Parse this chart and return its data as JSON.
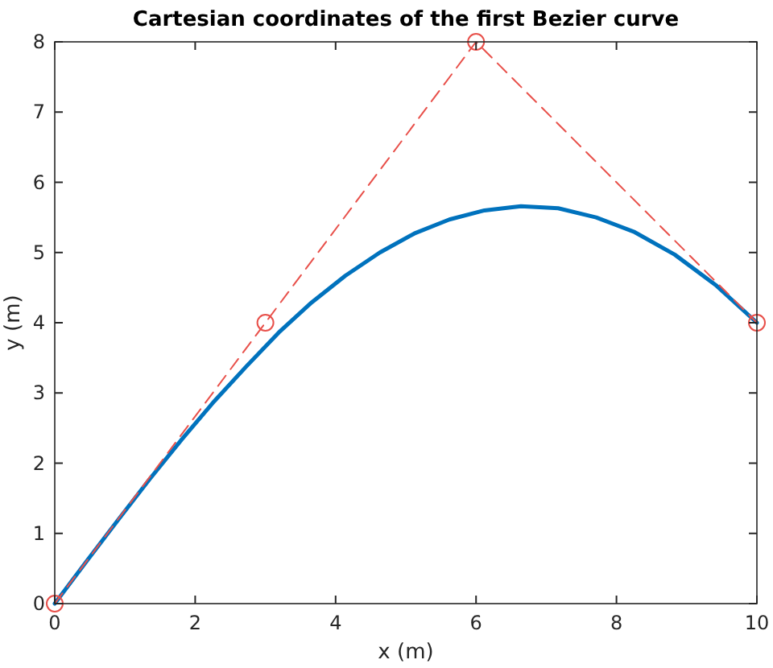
{
  "chart_data": {
    "type": "line",
    "title": "Cartesian coordinates of the first Bezier curve",
    "xlabel": "x (m)",
    "ylabel": "y (m)",
    "xlim": [
      0,
      10
    ],
    "ylim": [
      0,
      8
    ],
    "xticks": [
      0,
      2,
      4,
      6,
      8,
      10
    ],
    "yticks": [
      0,
      1,
      2,
      3,
      4,
      5,
      6,
      7,
      8
    ],
    "grid": false,
    "series": [
      {
        "color": "#0072bd",
        "marker": "none",
        "line_style": "solid",
        "x": [
          0,
          0.45,
          0.9,
          1.35,
          1.81,
          2.27,
          2.73,
          3.19,
          3.66,
          4.14,
          4.63,
          5.12,
          5.62,
          6.12,
          6.64,
          7.17,
          7.71,
          8.26,
          8.83,
          9.41,
          10
        ],
        "values": [
          0,
          0.6,
          1.19,
          1.77,
          2.34,
          2.88,
          3.38,
          3.86,
          4.29,
          4.67,
          5,
          5.27,
          5.47,
          5.6,
          5.66,
          5.63,
          5.5,
          5.29,
          4.97,
          4.54,
          4
        ]
      },
      {
        "color": "#e8504a",
        "marker": "circle",
        "line_style": "dashed",
        "x": [
          0,
          3,
          6,
          10
        ],
        "values": [
          0,
          4,
          8,
          4
        ]
      }
    ]
  }
}
